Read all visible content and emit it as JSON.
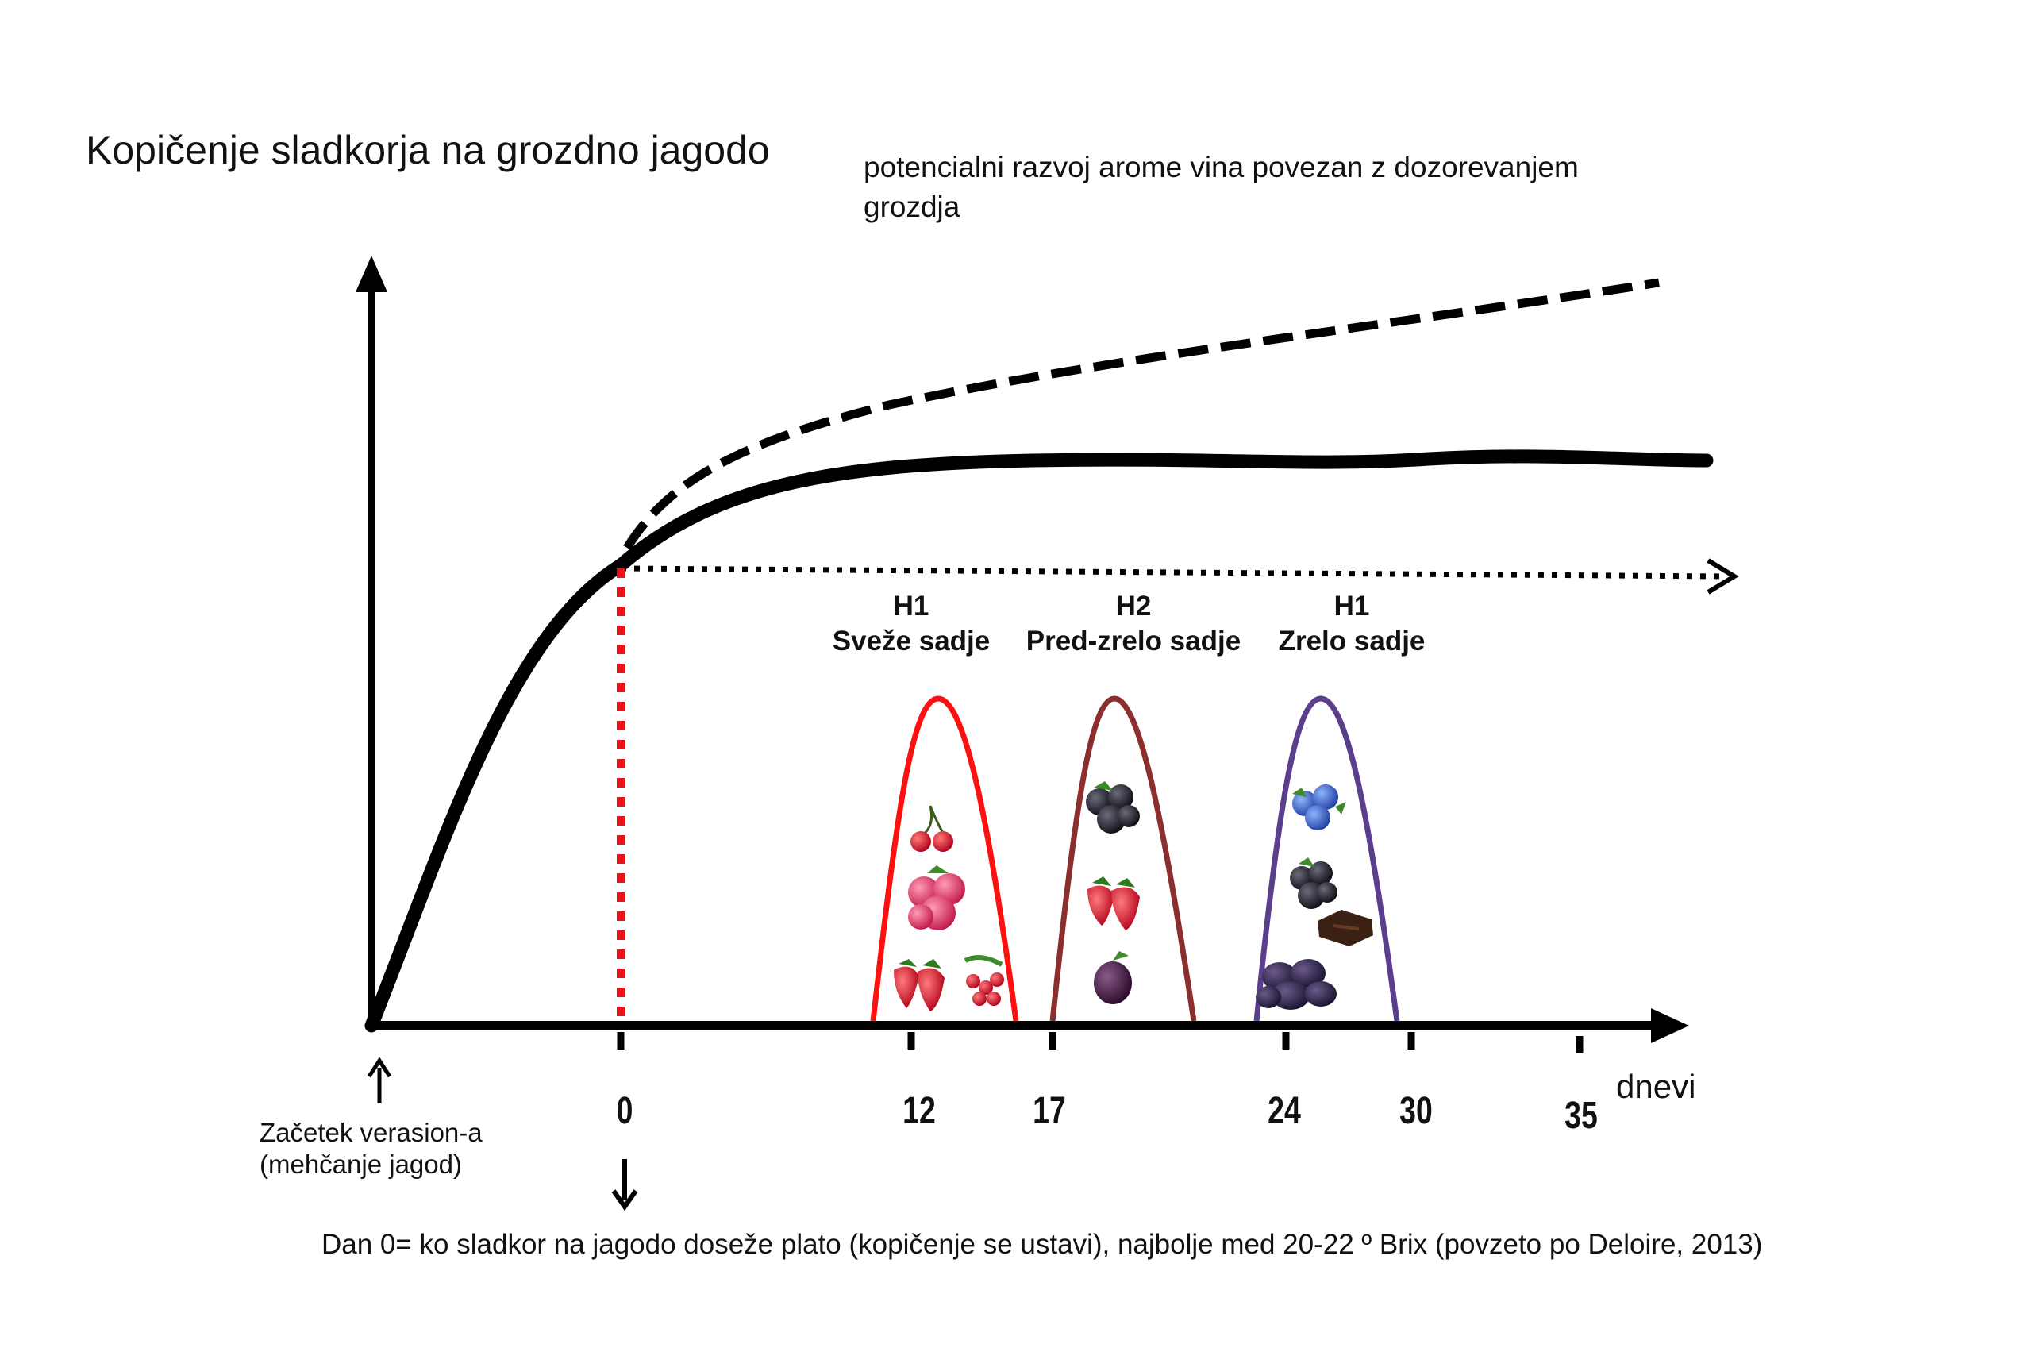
{
  "title": "Kopičenje sladkorja na grozdno jagodo",
  "aroma_label": {
    "line1": "potencialni razvoj arome vina povezan z dozorevanjem",
    "line2": "grozdja"
  },
  "phases": [
    {
      "code": "H1",
      "name": "Sveže sadje",
      "color": "#ff1010",
      "fruits": [
        "cherry-icon",
        "raspberry-icon",
        "strawberry-icon",
        "redcurrant-icon"
      ]
    },
    {
      "code": "H2",
      "name": "Pred-zrelo sadje",
      "color": "#8b2e2e",
      "fruits": [
        "blackberry-icon",
        "strawberry-icon",
        "plum-icon"
      ]
    },
    {
      "code": "H1",
      "name": "Zrelo sadje",
      "color": "#5b3f8c",
      "fruits": [
        "blueberry-icon",
        "blackberry-icon",
        "chocolate-icon",
        "prune-icon"
      ]
    }
  ],
  "x_axis": {
    "unit_label": "dnevi",
    "ticks": [
      "0",
      "12",
      "17",
      "24",
      "30",
      "35"
    ]
  },
  "veraison": {
    "line1": "Začetek verasion-a",
    "line2": "(mehčanje jagod)"
  },
  "footnote": "Dan 0= ko sladkor na jagodo doseže plato (kopičenje se ustavi), najbolje med 20-22 º Brix (povzeto po Deloire, 2013)",
  "colors": {
    "curve": "#000000",
    "day0_marker": "#e8141b",
    "h1_fresh": "#ff1010",
    "h2_preripe": "#8b2e2e",
    "h1_ripe": "#5b3f8c"
  }
}
